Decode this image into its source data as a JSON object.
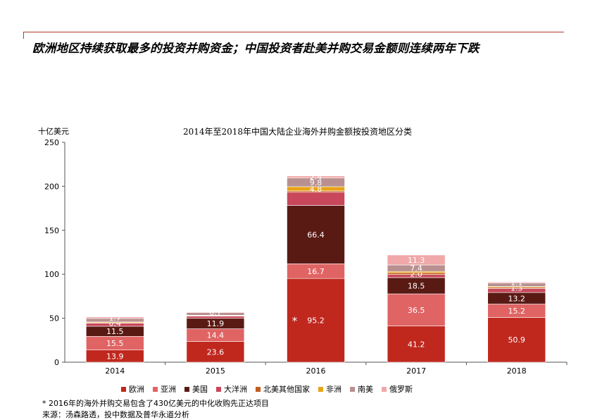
{
  "headline": "欧洲地区持续获取最多的投资并购资金；中国投资者赴美并购交易金额则连续两年下跌",
  "unit_label": "十亿美元",
  "footnote": "* 2016年的海外并购交易包含了430亿美元的中化收购先正达项目",
  "source": "来源：汤森路透，投中数据及普华永道分析",
  "chart_data": {
    "type": "bar",
    "stacked": true,
    "title": "2014年至2018年中国大陆企业海外并购金额按投资地区分类",
    "categories": [
      "2014",
      "2015",
      "2016",
      "2017",
      "2018"
    ],
    "ylim": [
      0,
      250
    ],
    "yticks": [
      0,
      50,
      100,
      150,
      200,
      250
    ],
    "grid": false,
    "legend_position": "bottom",
    "series": [
      {
        "name": "欧洲",
        "color": "#c0281e",
        "values": [
          13.9,
          23.6,
          95.2,
          41.2,
          50.9
        ],
        "labels": [
          "13.9",
          "23.6",
          "95.2",
          "41.2",
          "50.9"
        ]
      },
      {
        "name": "亚洲",
        "color": "#e06464",
        "values": [
          15.5,
          14.4,
          16.7,
          36.5,
          15.2
        ],
        "labels": [
          "15.5",
          "14.4",
          "16.7",
          "36.5",
          "15.2"
        ]
      },
      {
        "name": "美国",
        "color": "#5a1a14",
        "values": [
          11.5,
          11.9,
          66.4,
          18.5,
          13.2
        ],
        "labels": [
          "11.5",
          "11.9",
          "66.4",
          "18.5",
          "13.2"
        ]
      },
      {
        "name": "大洋洲",
        "color": "#c8475a",
        "values": [
          3.5,
          2.5,
          15.0,
          3.5,
          4.5
        ],
        "labels": [
          "",
          "",
          "",
          "",
          ""
        ]
      },
      {
        "name": "北美其他国家",
        "color": "#c45a1a",
        "values": [
          0.4,
          0.5,
          1.5,
          2.0,
          1.3
        ],
        "labels": [
          "0.4",
          "",
          "",
          "2.0",
          "1.3"
        ]
      },
      {
        "name": "非洲",
        "color": "#e8a317",
        "values": [
          1.0,
          0.5,
          4.8,
          1.5,
          1.0
        ],
        "labels": [
          "",
          "",
          "4.8",
          "",
          ""
        ]
      },
      {
        "name": "南美",
        "color": "#b89090",
        "values": [
          4.0,
          3.0,
          9.8,
          7.4,
          4.0
        ],
        "labels": [
          "",
          "",
          "9.8",
          "7.4",
          ""
        ]
      },
      {
        "name": "俄罗斯",
        "color": "#f0a8a8",
        "values": [
          1.7,
          0.7,
          2.4,
          11.3,
          1.1
        ],
        "labels": [
          "1.7",
          "0.7",
          "2.4",
          "11.3",
          "1.1"
        ]
      }
    ],
    "annotations": [
      {
        "category": "2016",
        "series": "欧洲",
        "text": "*"
      }
    ]
  }
}
